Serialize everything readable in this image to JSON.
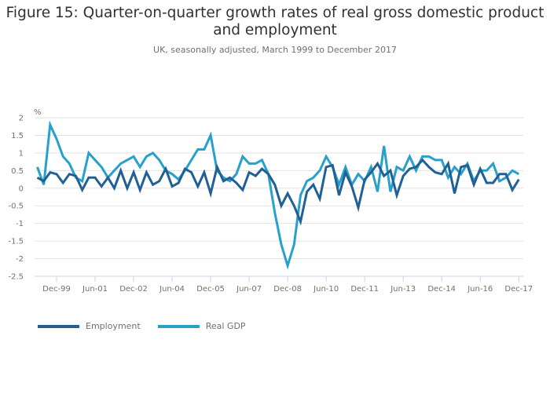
{
  "chart_data": {
    "type": "line",
    "title": "Figure 15: Quarter-on-quarter growth rates of real gross domestic product and employment",
    "subtitle": "UK, seasonally adjusted, March 1999 to December 2017",
    "xlabel": "",
    "ylabel": "%",
    "ylim": [
      -2.5,
      2
    ],
    "yticks": [
      "2",
      "1.5",
      "1",
      "0.5",
      "0",
      "-0.5",
      "-1",
      "-1.5",
      "-2",
      "-2.5"
    ],
    "ytick_values": [
      2,
      1.5,
      1,
      0.5,
      0,
      -0.5,
      -1,
      -1.5,
      -2,
      -2.5
    ],
    "xticks": [
      "Dec-99",
      "Jun-01",
      "Dec-02",
      "Jun-04",
      "Dec-05",
      "Jun-07",
      "Dec-08",
      "Jun-10",
      "Dec-11",
      "Jun-13",
      "Dec-14",
      "Jun-16",
      "Dec-17"
    ],
    "xtick_indices": [
      3,
      9,
      15,
      21,
      27,
      33,
      39,
      45,
      51,
      57,
      63,
      69,
      75
    ],
    "x_start": "Mar-99",
    "x_end": "Dec-17",
    "frequency": "quarterly",
    "grid": true,
    "legend_position": "bottom-left",
    "series": [
      {
        "name": "Employment",
        "color": "#206095",
        "values": [
          0.3,
          0.2,
          0.45,
          0.4,
          0.15,
          0.4,
          0.35,
          -0.05,
          0.3,
          0.3,
          0.05,
          0.3,
          0.0,
          0.5,
          0.0,
          0.45,
          -0.05,
          0.45,
          0.1,
          0.2,
          0.55,
          0.05,
          0.15,
          0.55,
          0.45,
          0.05,
          0.45,
          -0.15,
          0.6,
          0.2,
          0.3,
          0.15,
          -0.05,
          0.45,
          0.35,
          0.55,
          0.4,
          0.1,
          -0.5,
          -0.15,
          -0.5,
          -0.95,
          -0.1,
          0.1,
          -0.3,
          0.6,
          0.65,
          -0.2,
          0.45,
          0.05,
          -0.55,
          0.25,
          0.45,
          0.7,
          0.35,
          0.5,
          -0.2,
          0.35,
          0.55,
          0.6,
          0.8,
          0.6,
          0.45,
          0.4,
          0.7,
          -0.15,
          0.6,
          0.65,
          0.1,
          0.55,
          0.15,
          0.15,
          0.4,
          0.4,
          -0.05,
          0.25
        ]
      },
      {
        "name": "Real GDP",
        "color": "#27a0cc",
        "values": [
          0.6,
          0.1,
          1.8,
          1.4,
          0.9,
          0.7,
          0.3,
          0.2,
          1.0,
          0.8,
          0.6,
          0.3,
          0.5,
          0.7,
          0.8,
          0.9,
          0.6,
          0.9,
          1.0,
          0.8,
          0.5,
          0.4,
          0.25,
          0.5,
          0.8,
          1.1,
          1.1,
          1.5,
          0.5,
          0.3,
          0.2,
          0.4,
          0.9,
          0.7,
          0.7,
          0.8,
          0.4,
          -0.7,
          -1.6,
          -2.2,
          -1.6,
          -0.2,
          0.2,
          0.3,
          0.5,
          0.9,
          0.6,
          0.1,
          0.6,
          0.1,
          0.4,
          0.2,
          0.6,
          -0.1,
          1.2,
          -0.1,
          0.6,
          0.5,
          0.9,
          0.5,
          0.9,
          0.9,
          0.8,
          0.8,
          0.3,
          0.6,
          0.4,
          0.7,
          0.2,
          0.5,
          0.5,
          0.7,
          0.2,
          0.3,
          0.5,
          0.4
        ]
      }
    ]
  }
}
